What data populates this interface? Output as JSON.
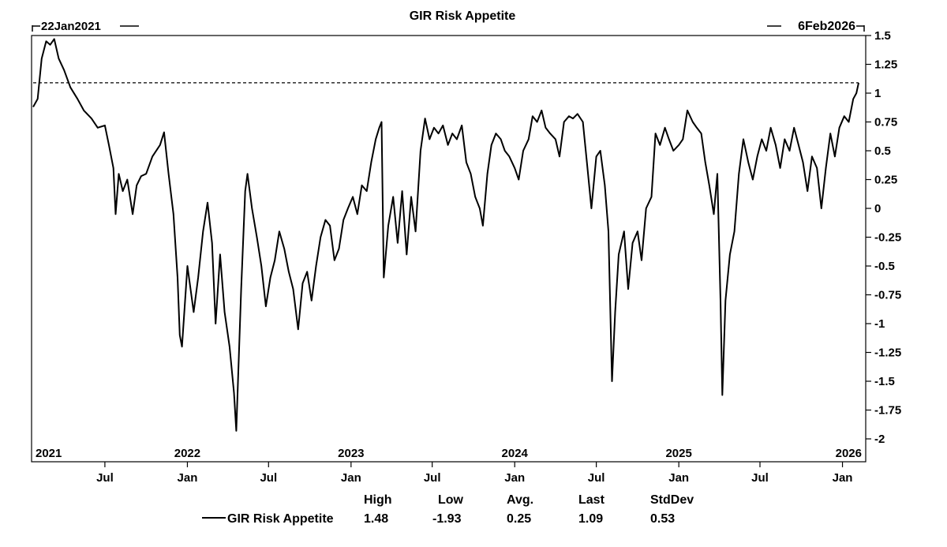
{
  "chart_data": {
    "type": "line",
    "title": "GIR Risk Appetite",
    "start_label": "22Jan2021",
    "end_label": "6Feb2026",
    "ylim": [
      -2,
      1.5
    ],
    "y_ticks": [
      "1.5",
      "1.25",
      "1",
      "0.75",
      "0.5",
      "0.25",
      "0",
      "-0.25",
      "-0.5",
      "-0.75",
      "-1",
      "-1.25",
      "-1.5",
      "-1.75",
      "-2"
    ],
    "year_labels": [
      {
        "date": "2021-01-22",
        "label": "2021"
      },
      {
        "date": "2022-01-01",
        "label": "2022"
      },
      {
        "date": "2023-01-01",
        "label": "2023"
      },
      {
        "date": "2024-01-01",
        "label": "2024"
      },
      {
        "date": "2025-01-01",
        "label": "2025"
      },
      {
        "date": "2026-01-01",
        "label": "2026"
      }
    ],
    "month_ticks": [
      {
        "date": "2021-07-01",
        "label": "Jul"
      },
      {
        "date": "2022-01-01",
        "label": "Jan"
      },
      {
        "date": "2022-07-01",
        "label": "Jul"
      },
      {
        "date": "2023-01-01",
        "label": "Jan"
      },
      {
        "date": "2023-07-01",
        "label": "Jul"
      },
      {
        "date": "2024-01-01",
        "label": "Jan"
      },
      {
        "date": "2024-07-01",
        "label": "Jul"
      },
      {
        "date": "2025-01-01",
        "label": "Jan"
      },
      {
        "date": "2025-07-01",
        "label": "Jul"
      },
      {
        "date": "2026-01-01",
        "label": "Jan"
      }
    ],
    "reference_line": {
      "y": 1.09,
      "style": "dashed"
    },
    "series": [
      {
        "name": "GIR Risk Appetite",
        "points": [
          [
            "2021-01-22",
            0.88
          ],
          [
            "2021-02-01",
            0.95
          ],
          [
            "2021-02-10",
            1.3
          ],
          [
            "2021-02-20",
            1.45
          ],
          [
            "2021-03-01",
            1.42
          ],
          [
            "2021-03-10",
            1.47
          ],
          [
            "2021-03-20",
            1.3
          ],
          [
            "2021-04-01",
            1.2
          ],
          [
            "2021-04-15",
            1.05
          ],
          [
            "2021-05-01",
            0.95
          ],
          [
            "2021-05-15",
            0.85
          ],
          [
            "2021-06-01",
            0.78
          ],
          [
            "2021-06-15",
            0.7
          ],
          [
            "2021-07-01",
            0.72
          ],
          [
            "2021-07-10",
            0.55
          ],
          [
            "2021-07-20",
            0.35
          ],
          [
            "2021-07-25",
            -0.05
          ],
          [
            "2021-08-01",
            0.3
          ],
          [
            "2021-08-10",
            0.15
          ],
          [
            "2021-08-20",
            0.25
          ],
          [
            "2021-09-01",
            -0.05
          ],
          [
            "2021-09-10",
            0.2
          ],
          [
            "2021-09-20",
            0.28
          ],
          [
            "2021-10-01",
            0.3
          ],
          [
            "2021-10-15",
            0.45
          ],
          [
            "2021-11-01",
            0.55
          ],
          [
            "2021-11-10",
            0.66
          ],
          [
            "2021-11-20",
            0.3
          ],
          [
            "2021-12-01",
            -0.05
          ],
          [
            "2021-12-10",
            -0.6
          ],
          [
            "2021-12-15",
            -1.1
          ],
          [
            "2021-12-20",
            -1.2
          ],
          [
            "2022-01-01",
            -0.5
          ],
          [
            "2022-01-15",
            -0.9
          ],
          [
            "2022-01-25",
            -0.6
          ],
          [
            "2022-02-05",
            -0.2
          ],
          [
            "2022-02-15",
            0.05
          ],
          [
            "2022-02-25",
            -0.3
          ],
          [
            "2022-03-05",
            -1.0
          ],
          [
            "2022-03-15",
            -0.4
          ],
          [
            "2022-03-25",
            -0.9
          ],
          [
            "2022-04-05",
            -1.2
          ],
          [
            "2022-04-15",
            -1.6
          ],
          [
            "2022-04-20",
            -1.93
          ],
          [
            "2022-05-01",
            -0.7
          ],
          [
            "2022-05-10",
            0.15
          ],
          [
            "2022-05-15",
            0.3
          ],
          [
            "2022-05-25",
            0.0
          ],
          [
            "2022-06-05",
            -0.25
          ],
          [
            "2022-06-15",
            -0.5
          ],
          [
            "2022-06-25",
            -0.85
          ],
          [
            "2022-07-05",
            -0.6
          ],
          [
            "2022-07-15",
            -0.45
          ],
          [
            "2022-07-25",
            -0.2
          ],
          [
            "2022-08-05",
            -0.35
          ],
          [
            "2022-08-15",
            -0.55
          ],
          [
            "2022-08-25",
            -0.7
          ],
          [
            "2022-09-05",
            -1.05
          ],
          [
            "2022-09-15",
            -0.65
          ],
          [
            "2022-09-25",
            -0.55
          ],
          [
            "2022-10-05",
            -0.8
          ],
          [
            "2022-10-15",
            -0.5
          ],
          [
            "2022-10-25",
            -0.25
          ],
          [
            "2022-11-05",
            -0.1
          ],
          [
            "2022-11-15",
            -0.15
          ],
          [
            "2022-11-25",
            -0.45
          ],
          [
            "2022-12-05",
            -0.35
          ],
          [
            "2022-12-15",
            -0.1
          ],
          [
            "2022-12-25",
            0.0
          ],
          [
            "2023-01-05",
            0.1
          ],
          [
            "2023-01-15",
            -0.05
          ],
          [
            "2023-01-25",
            0.2
          ],
          [
            "2023-02-05",
            0.15
          ],
          [
            "2023-02-15",
            0.4
          ],
          [
            "2023-02-25",
            0.6
          ],
          [
            "2023-03-05",
            0.7
          ],
          [
            "2023-03-10",
            0.75
          ],
          [
            "2023-03-15",
            -0.6
          ],
          [
            "2023-03-25",
            -0.15
          ],
          [
            "2023-04-05",
            0.1
          ],
          [
            "2023-04-15",
            -0.3
          ],
          [
            "2023-04-25",
            0.15
          ],
          [
            "2023-05-05",
            -0.4
          ],
          [
            "2023-05-15",
            0.1
          ],
          [
            "2023-05-25",
            -0.2
          ],
          [
            "2023-06-05",
            0.5
          ],
          [
            "2023-06-15",
            0.78
          ],
          [
            "2023-06-25",
            0.6
          ],
          [
            "2023-07-05",
            0.7
          ],
          [
            "2023-07-15",
            0.65
          ],
          [
            "2023-07-25",
            0.72
          ],
          [
            "2023-08-05",
            0.55
          ],
          [
            "2023-08-15",
            0.65
          ],
          [
            "2023-08-25",
            0.6
          ],
          [
            "2023-09-05",
            0.72
          ],
          [
            "2023-09-15",
            0.4
          ],
          [
            "2023-09-25",
            0.3
          ],
          [
            "2023-10-05",
            0.1
          ],
          [
            "2023-10-15",
            0.0
          ],
          [
            "2023-10-22",
            -0.15
          ],
          [
            "2023-11-01",
            0.3
          ],
          [
            "2023-11-10",
            0.55
          ],
          [
            "2023-11-20",
            0.65
          ],
          [
            "2023-12-01",
            0.6
          ],
          [
            "2023-12-10",
            0.5
          ],
          [
            "2023-12-20",
            0.45
          ],
          [
            "2024-01-01",
            0.35
          ],
          [
            "2024-01-10",
            0.25
          ],
          [
            "2024-01-20",
            0.5
          ],
          [
            "2024-02-01",
            0.6
          ],
          [
            "2024-02-10",
            0.8
          ],
          [
            "2024-02-20",
            0.75
          ],
          [
            "2024-03-01",
            0.85
          ],
          [
            "2024-03-10",
            0.7
          ],
          [
            "2024-03-20",
            0.65
          ],
          [
            "2024-04-01",
            0.6
          ],
          [
            "2024-04-10",
            0.45
          ],
          [
            "2024-04-20",
            0.75
          ],
          [
            "2024-05-01",
            0.8
          ],
          [
            "2024-05-10",
            0.78
          ],
          [
            "2024-05-20",
            0.82
          ],
          [
            "2024-06-01",
            0.75
          ],
          [
            "2024-06-10",
            0.4
          ],
          [
            "2024-06-20",
            0.0
          ],
          [
            "2024-07-01",
            0.45
          ],
          [
            "2024-07-10",
            0.5
          ],
          [
            "2024-07-20",
            0.2
          ],
          [
            "2024-07-28",
            -0.2
          ],
          [
            "2024-08-05",
            -1.5
          ],
          [
            "2024-08-12",
            -0.9
          ],
          [
            "2024-08-20",
            -0.4
          ],
          [
            "2024-09-01",
            -0.2
          ],
          [
            "2024-09-10",
            -0.7
          ],
          [
            "2024-09-20",
            -0.3
          ],
          [
            "2024-10-01",
            -0.2
          ],
          [
            "2024-10-10",
            -0.45
          ],
          [
            "2024-10-20",
            0.0
          ],
          [
            "2024-11-01",
            0.1
          ],
          [
            "2024-11-10",
            0.65
          ],
          [
            "2024-11-20",
            0.55
          ],
          [
            "2024-12-01",
            0.7
          ],
          [
            "2024-12-10",
            0.6
          ],
          [
            "2024-12-20",
            0.5
          ],
          [
            "2025-01-01",
            0.55
          ],
          [
            "2025-01-10",
            0.6
          ],
          [
            "2025-01-20",
            0.85
          ],
          [
            "2025-02-01",
            0.75
          ],
          [
            "2025-02-10",
            0.7
          ],
          [
            "2025-02-20",
            0.65
          ],
          [
            "2025-03-01",
            0.4
          ],
          [
            "2025-03-10",
            0.2
          ],
          [
            "2025-03-20",
            -0.05
          ],
          [
            "2025-03-28",
            0.3
          ],
          [
            "2025-04-04",
            -0.8
          ],
          [
            "2025-04-08",
            -1.62
          ],
          [
            "2025-04-15",
            -0.8
          ],
          [
            "2025-04-25",
            -0.4
          ],
          [
            "2025-05-05",
            -0.2
          ],
          [
            "2025-05-15",
            0.3
          ],
          [
            "2025-05-25",
            0.6
          ],
          [
            "2025-06-05",
            0.4
          ],
          [
            "2025-06-15",
            0.25
          ],
          [
            "2025-06-25",
            0.45
          ],
          [
            "2025-07-05",
            0.6
          ],
          [
            "2025-07-15",
            0.5
          ],
          [
            "2025-07-25",
            0.7
          ],
          [
            "2025-08-05",
            0.55
          ],
          [
            "2025-08-15",
            0.35
          ],
          [
            "2025-08-25",
            0.6
          ],
          [
            "2025-09-05",
            0.5
          ],
          [
            "2025-09-15",
            0.7
          ],
          [
            "2025-09-25",
            0.55
          ],
          [
            "2025-10-05",
            0.4
          ],
          [
            "2025-10-15",
            0.15
          ],
          [
            "2025-10-25",
            0.45
          ],
          [
            "2025-11-05",
            0.35
          ],
          [
            "2025-11-15",
            0.0
          ],
          [
            "2025-11-25",
            0.35
          ],
          [
            "2025-12-05",
            0.65
          ],
          [
            "2025-12-15",
            0.45
          ],
          [
            "2025-12-25",
            0.7
          ],
          [
            "2026-01-05",
            0.8
          ],
          [
            "2026-01-15",
            0.75
          ],
          [
            "2026-01-25",
            0.95
          ],
          [
            "2026-02-01",
            1.0
          ],
          [
            "2026-02-06",
            1.09
          ]
        ]
      }
    ],
    "stats": {
      "headers": [
        "High",
        "Low",
        "Avg.",
        "Last",
        "StdDev"
      ],
      "series_name": "GIR Risk Appetite",
      "values": [
        "1.48",
        "-1.93",
        "0.25",
        "1.09",
        "0.53"
      ]
    }
  }
}
